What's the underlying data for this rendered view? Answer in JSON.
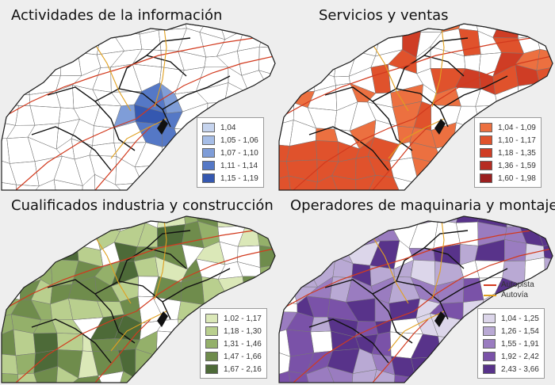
{
  "colors": {
    "background": "#eeeeee",
    "map_white": "#ffffff",
    "sea": "#ffffff",
    "municipal_border": "#777777",
    "comarca_border": "#111111",
    "autopista": "#d23a1e",
    "autovia": "#e0a020"
  },
  "panels": [
    {
      "title": "Actividades de la  información",
      "legend": [
        {
          "label": "1,04",
          "color": "#c6d4ee"
        },
        {
          "label": "1,05 - 1,06",
          "color": "#a6bde6"
        },
        {
          "label": "1,07 - 1,10",
          "color": "#7f9dd8"
        },
        {
          "label": "1,11 - 1,14",
          "color": "#5578c6"
        },
        {
          "label": "1,15 - 1,19",
          "color": "#3558b0"
        }
      ]
    },
    {
      "title": "Servicios y ventas",
      "legend": [
        {
          "label": "1,04 - 1,09",
          "color": "#ec7040"
        },
        {
          "label": "1,10 - 1,17",
          "color": "#e0522c"
        },
        {
          "label": "1,18 - 1,35",
          "color": "#cf3d25"
        },
        {
          "label": "1,36 - 1,59",
          "color": "#b62c22"
        },
        {
          "label": "1,60 - 1,98",
          "color": "#9a1f1f"
        }
      ]
    },
    {
      "title": "Cualificados industria y construcción",
      "legend": [
        {
          "label": "1,02 - 1,17",
          "color": "#dbe8b8"
        },
        {
          "label": "1,18 - 1,30",
          "color": "#b9cf8e"
        },
        {
          "label": "1,31 - 1,46",
          "color": "#94b06a"
        },
        {
          "label": "1,47 - 1,66",
          "color": "#6f8c4c"
        },
        {
          "label": "1,67 - 2,16",
          "color": "#4d6a38"
        }
      ]
    },
    {
      "title": "Operadores de maquinaria y montaje",
      "roads": [
        {
          "label": "Autopista",
          "color": "#d23a1e"
        },
        {
          "label": "Autovía",
          "color": "#e0a020"
        }
      ],
      "legend": [
        {
          "label": "1,04 - 1,25",
          "color": "#dcd6ea"
        },
        {
          "label": "1,26 - 1,54",
          "color": "#b9a9d4"
        },
        {
          "label": "1,55 - 1,91",
          "color": "#9a7cc0"
        },
        {
          "label": "1,92 - 2,42",
          "color": "#7a52a8"
        },
        {
          "label": "2,43 - 3,66",
          "color": "#58338a"
        }
      ]
    }
  ]
}
